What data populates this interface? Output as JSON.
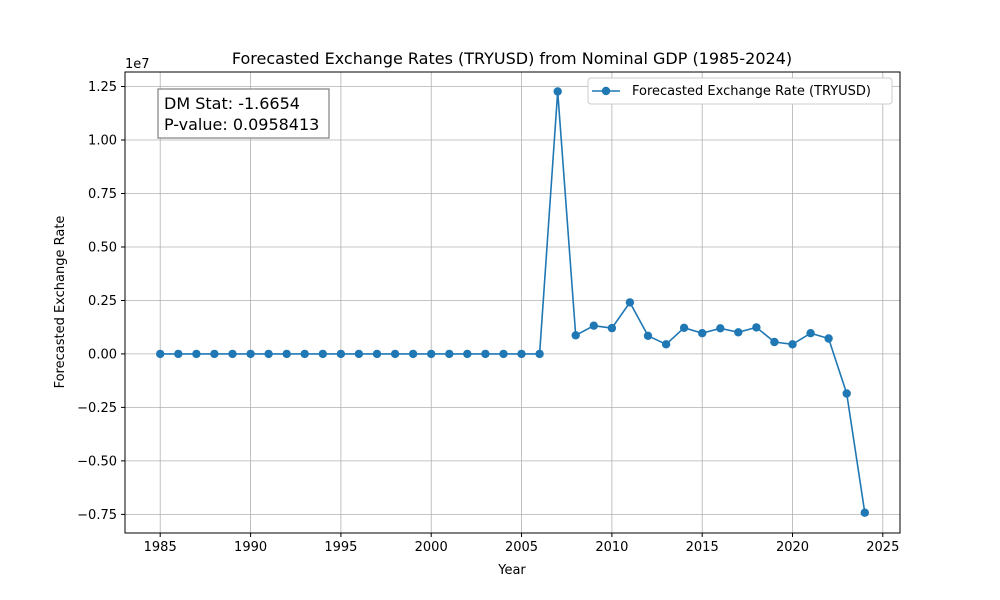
{
  "chart_data": {
    "type": "line",
    "title": "Forecasted Exchange Rates (TRYUSD) from Nominal GDP (1985-2024)",
    "xlabel": "Year",
    "ylabel": "Forecasted Exchange Rate",
    "y_offset_label": "1e7",
    "xlim": [
      1983.05,
      1925.95
    ],
    "ylim": [
      -0.837,
      1.318
    ],
    "x_ticks": [
      1985,
      1990,
      1995,
      2000,
      2005,
      2010,
      2015,
      2020,
      2025
    ],
    "y_ticks": [
      -0.75,
      -0.5,
      -0.25,
      0.0,
      0.25,
      0.5,
      0.75,
      1.0,
      1.25
    ],
    "y_tick_labels": [
      "−0.75",
      "−0.50",
      "−0.25",
      "0.00",
      "0.25",
      "0.50",
      "0.75",
      "1.00",
      "1.25"
    ],
    "grid": true,
    "legend_position": "top-right",
    "series": [
      {
        "name": "Forecasted Exchange Rate (TRYUSD)",
        "color": "#1f77b4",
        "x": [
          1985,
          1986,
          1987,
          1988,
          1989,
          1990,
          1991,
          1992,
          1993,
          1994,
          1995,
          1996,
          1997,
          1998,
          1999,
          2000,
          2001,
          2002,
          2003,
          2004,
          2005,
          2006,
          2007,
          2008,
          2009,
          2010,
          2011,
          2012,
          2013,
          2014,
          2015,
          2016,
          2017,
          2018,
          2019,
          2020,
          2021,
          2022,
          2023,
          2024
        ],
        "values": [
          0,
          0,
          0,
          0,
          0,
          0,
          0,
          0,
          0,
          0,
          0,
          0,
          0,
          0,
          0,
          0,
          0,
          0,
          0,
          0,
          0,
          0,
          1.227,
          0.087,
          0.132,
          0.121,
          0.241,
          0.085,
          0.045,
          0.122,
          0.097,
          0.12,
          0.101,
          0.124,
          0.056,
          0.045,
          0.097,
          0.072,
          -0.185,
          -0.742
        ]
      }
    ],
    "annotation": {
      "dm_stat": "DM Stat: -1.6654",
      "p_value": "P-value: 0.0958413"
    }
  }
}
